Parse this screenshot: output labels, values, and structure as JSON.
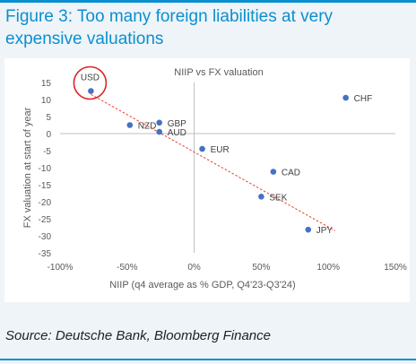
{
  "figure_title": "Figure 3: Too many foreign liabilities at very expensive valuations",
  "source": "Source: Deutsche Bank, Bloomberg Finance",
  "colors": {
    "accent": "#0a8fd0",
    "point": "#4472c4",
    "trend": "#e8402a",
    "highlight": "#d9242a"
  },
  "chart_data": {
    "type": "scatter",
    "title": "NIIP vs FX valuation",
    "xlabel": "NIIP (q4 average as % GDP, Q4'23-Q3'24)",
    "ylabel": "FX valuation at start of year",
    "xlim": [
      -100,
      150
    ],
    "ylim": [
      -35,
      15
    ],
    "x_ticks": [
      "-100%",
      "-50%",
      "0%",
      "50%",
      "100%",
      "150%"
    ],
    "x_tick_values": [
      -100,
      -50,
      0,
      50,
      100,
      150
    ],
    "y_ticks": [
      "15",
      "10",
      "5",
      "0",
      "-5",
      "-10",
      "-15",
      "-20",
      "-25",
      "-30",
      "-35"
    ],
    "y_tick_values": [
      15,
      10,
      5,
      0,
      -5,
      -10,
      -15,
      -20,
      -25,
      -30,
      -35
    ],
    "points": [
      {
        "label": "USD",
        "x": -77,
        "y": 12.5,
        "highlighted": true
      },
      {
        "label": "CHF",
        "x": 113,
        "y": 10.5
      },
      {
        "label": "GBP",
        "x": -26,
        "y": 3.2
      },
      {
        "label": "NZD",
        "x": -48,
        "y": 2.5
      },
      {
        "label": "AUD",
        "x": -26,
        "y": 0.5
      },
      {
        "label": "EUR",
        "x": 6,
        "y": -4.5
      },
      {
        "label": "CAD",
        "x": 59,
        "y": -11.2
      },
      {
        "label": "SEK",
        "x": 50,
        "y": -18.5
      },
      {
        "label": "JPY",
        "x": 85,
        "y": -28.2
      }
    ],
    "trendline": {
      "style": "dashed",
      "from": [
        -77,
        11.5
      ],
      "to": [
        105,
        -28.5
      ]
    },
    "grid": false,
    "legend": "none"
  }
}
